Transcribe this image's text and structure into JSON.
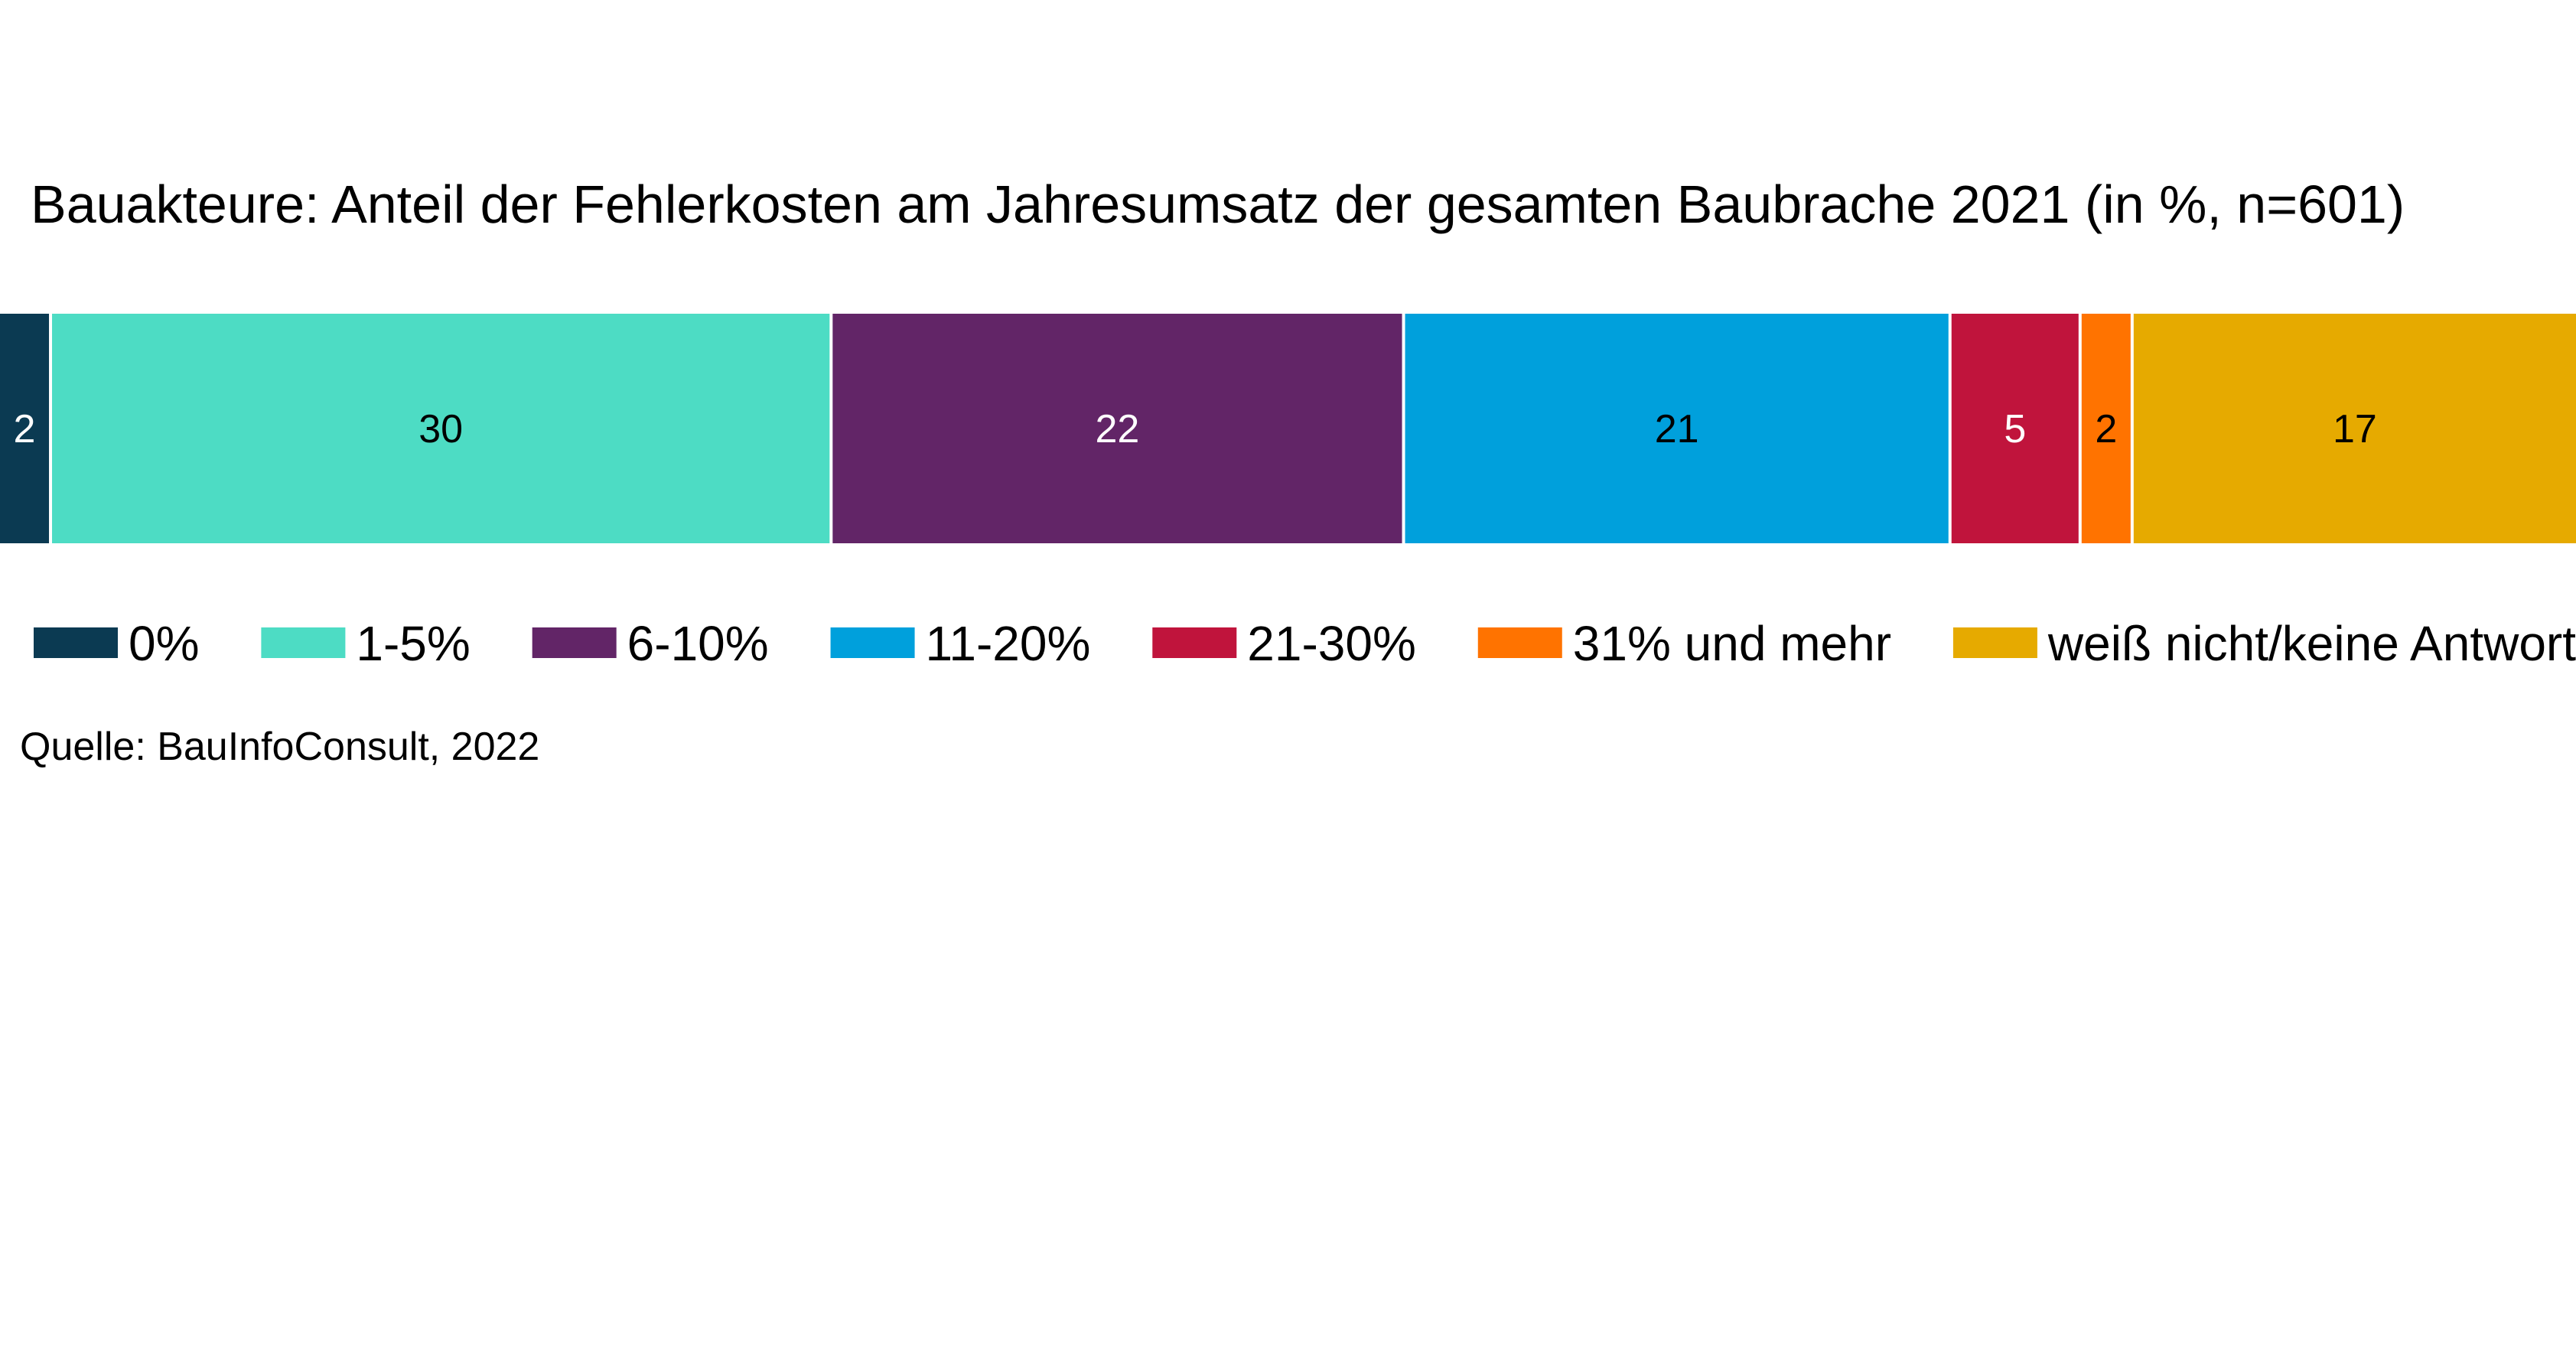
{
  "chart_data": {
    "type": "bar",
    "orientation": "horizontal-stacked",
    "title": "Bauakteure: Anteil der Fehlerkosten am Jahresumsatz der gesamten Baubrache 2021 (in %, n=601)",
    "series": [
      {
        "name": "0%",
        "value": 2,
        "label": "2",
        "color": "#0b3a52",
        "label_color": "#ffffff"
      },
      {
        "name": "1-5%",
        "value": 30,
        "label": "30",
        "color": "#4ddcc4",
        "label_color": "#000000"
      },
      {
        "name": "6-10%",
        "value": 22,
        "label": "22",
        "color": "#622567",
        "label_color": "#ffffff"
      },
      {
        "name": "11-20%",
        "value": 21,
        "label": "21",
        "color": "#00a0dc",
        "label_color": "#000000"
      },
      {
        "name": "21-30%",
        "value": 5,
        "label": "5",
        "color": "#c0143c",
        "label_color": "#ffffff"
      },
      {
        "name": "31% und mehr",
        "value": 2,
        "label": "2",
        "color": "#ff7300",
        "label_color": "#000000"
      },
      {
        "name": "weiß nicht/keine Antwort",
        "value": 17,
        "label": "17",
        "color": "#e6aa00",
        "label_color": "#000000"
      }
    ],
    "legend_position": "bottom",
    "source": "Quelle: BauInfoConsult, 2022"
  }
}
